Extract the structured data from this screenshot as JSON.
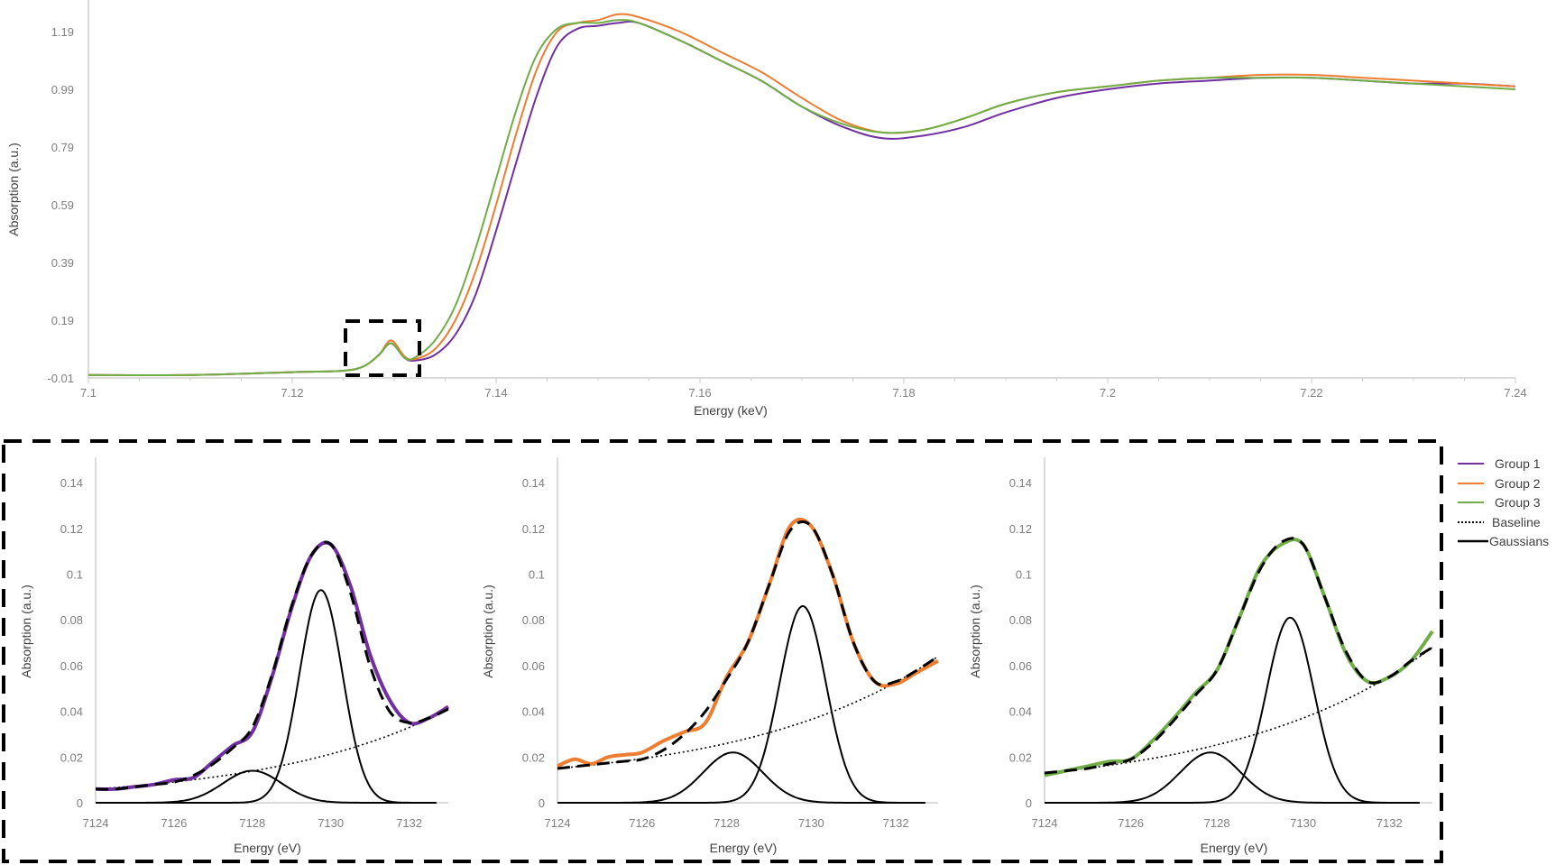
{
  "colors": {
    "group1": "#7030a0",
    "group2": "#ed7d31",
    "group3": "#70ad47",
    "baseline": "#000000",
    "gaussians": "#000000",
    "fit": "#000000",
    "axis": "#d0d0d0",
    "tick_text": "#7f7f7f"
  },
  "legend": {
    "items": [
      {
        "label": "Group 1",
        "style": "solid",
        "color": "#7030a0"
      },
      {
        "label": "Group 2",
        "style": "solid",
        "color": "#ed7d31"
      },
      {
        "label": "Group 3",
        "style": "solid",
        "color": "#70ad47"
      },
      {
        "label": "Baseline",
        "style": "dotted",
        "color": "#000000"
      },
      {
        "label": "Gaussians",
        "style": "solid",
        "color": "#000000"
      }
    ]
  },
  "chart_data": [
    {
      "id": "xanes-overview",
      "type": "line",
      "title": "",
      "xlabel": "Energy (keV)",
      "ylabel": "Absorption (a.u.)",
      "xlim": [
        7.1,
        7.24
      ],
      "ylim": [
        -0.01,
        1.29
      ],
      "x_ticks": [
        "7.1",
        "7.12",
        "7.14",
        "7.16",
        "7.18",
        "7.2",
        "7.22",
        "7.24"
      ],
      "y_ticks": [
        "-0.01",
        "0.19",
        "0.39",
        "0.59",
        "0.79",
        "0.99",
        "1.19"
      ],
      "grid": false,
      "legend_position": "right (shared, bottom panel)",
      "annotation": "dashed box around pre-edge peak, 7.125–7.132 keV",
      "x": [
        7.1,
        7.11,
        7.12,
        7.125,
        7.127,
        7.1285,
        7.1297,
        7.131,
        7.132,
        7.134,
        7.136,
        7.138,
        7.14,
        7.142,
        7.144,
        7.146,
        7.148,
        7.15,
        7.152,
        7.154,
        7.158,
        7.162,
        7.166,
        7.17,
        7.174,
        7.178,
        7.182,
        7.186,
        7.19,
        7.195,
        7.2,
        7.205,
        7.21,
        7.215,
        7.22,
        7.225,
        7.23,
        7.235,
        7.24
      ],
      "series": [
        {
          "name": "Group 1",
          "values": [
            0.0,
            0.0,
            0.01,
            0.015,
            0.03,
            0.07,
            0.11,
            0.06,
            0.05,
            0.07,
            0.14,
            0.28,
            0.5,
            0.74,
            0.97,
            1.14,
            1.2,
            1.21,
            1.22,
            1.22,
            1.16,
            1.09,
            1.02,
            0.93,
            0.86,
            0.82,
            0.83,
            0.86,
            0.91,
            0.96,
            0.99,
            1.01,
            1.02,
            1.03,
            1.03,
            1.02,
            1.01,
            1.01,
            1.0
          ]
        },
        {
          "name": "Group 2",
          "values": [
            0.0,
            0.0,
            0.01,
            0.015,
            0.03,
            0.07,
            0.12,
            0.065,
            0.055,
            0.09,
            0.19,
            0.36,
            0.59,
            0.84,
            1.06,
            1.19,
            1.22,
            1.23,
            1.25,
            1.24,
            1.19,
            1.12,
            1.05,
            0.96,
            0.88,
            0.84,
            0.85,
            0.89,
            0.94,
            0.98,
            1.0,
            1.02,
            1.03,
            1.04,
            1.04,
            1.03,
            1.02,
            1.01,
            1.0
          ]
        },
        {
          "name": "Group 3",
          "values": [
            0.0,
            0.0,
            0.01,
            0.015,
            0.03,
            0.07,
            0.11,
            0.06,
            0.06,
            0.12,
            0.24,
            0.44,
            0.68,
            0.92,
            1.11,
            1.2,
            1.22,
            1.22,
            1.23,
            1.22,
            1.16,
            1.09,
            1.02,
            0.93,
            0.87,
            0.84,
            0.85,
            0.89,
            0.94,
            0.98,
            1.0,
            1.02,
            1.03,
            1.03,
            1.03,
            1.02,
            1.01,
            1.0,
            0.99
          ]
        }
      ]
    },
    {
      "id": "pre-edge-group1",
      "type": "line",
      "xlabel": "Energy (eV)",
      "ylabel": "Absorption (a.u.)",
      "xlim": [
        7124,
        7133
      ],
      "ylim": [
        0,
        0.15
      ],
      "x_ticks": [
        "7124",
        "7126",
        "7128",
        "7130",
        "7132"
      ],
      "y_ticks": [
        "0",
        "0.02",
        "0.04",
        "0.06",
        "0.08",
        "0.1",
        "0.12",
        "0.14"
      ],
      "grid": false,
      "data": {
        "x": [
          7124,
          7124.5,
          7125,
          7125.5,
          7126,
          7126.5,
          7127,
          7127.5,
          7128,
          7128.5,
          7129,
          7129.5,
          7130,
          7130.5,
          7131,
          7131.5,
          7132,
          7132.5,
          7133
        ],
        "values": [
          0.006,
          0.006,
          0.007,
          0.008,
          0.01,
          0.011,
          0.018,
          0.025,
          0.031,
          0.055,
          0.085,
          0.108,
          0.113,
          0.095,
          0.065,
          0.045,
          0.035,
          0.037,
          0.042
        ]
      },
      "fit": {
        "x": [
          7124,
          7124.5,
          7125,
          7125.5,
          7126,
          7126.5,
          7127,
          7127.5,
          7128,
          7128.5,
          7129,
          7129.5,
          7130,
          7130.5,
          7131,
          7131.5,
          7132,
          7132.5,
          7133
        ],
        "values": [
          0.006,
          0.006,
          0.007,
          0.008,
          0.009,
          0.012,
          0.017,
          0.024,
          0.033,
          0.056,
          0.086,
          0.108,
          0.113,
          0.092,
          0.06,
          0.04,
          0.035,
          0.037,
          0.041
        ]
      },
      "baseline": {
        "start": [
          7124,
          0.006
        ],
        "end": [
          7133,
          0.041
        ],
        "curvature": "exponential"
      },
      "gaussians": [
        {
          "center": 7128.0,
          "height": 0.014,
          "sigma": 0.75
        },
        {
          "center": 7129.75,
          "height": 0.093,
          "sigma": 0.55
        }
      ]
    },
    {
      "id": "pre-edge-group2",
      "type": "line",
      "xlabel": "Energy (eV)",
      "ylabel": "Absorption (a.u.)",
      "xlim": [
        7124,
        7133
      ],
      "ylim": [
        0,
        0.15
      ],
      "x_ticks": [
        "7124",
        "7126",
        "7128",
        "7130",
        "7132"
      ],
      "y_ticks": [
        "0",
        "0.02",
        "0.04",
        "0.06",
        "0.08",
        "0.1",
        "0.12",
        "0.14"
      ],
      "grid": false,
      "data": {
        "x": [
          7124,
          7124.4,
          7124.8,
          7125.2,
          7125.6,
          7126,
          7126.5,
          7127,
          7127.5,
          7128,
          7128.5,
          7129,
          7129.5,
          7130,
          7130.5,
          7131,
          7131.5,
          7132,
          7132.5,
          7133
        ],
        "values": [
          0.016,
          0.019,
          0.017,
          0.02,
          0.021,
          0.022,
          0.027,
          0.031,
          0.035,
          0.055,
          0.07,
          0.095,
          0.121,
          0.121,
          0.1,
          0.07,
          0.053,
          0.052,
          0.057,
          0.062
        ]
      },
      "fit": {
        "x": [
          7124,
          7124.5,
          7125,
          7125.5,
          7126,
          7126.5,
          7127,
          7127.5,
          7128,
          7128.5,
          7129,
          7129.5,
          7130,
          7130.5,
          7131,
          7131.5,
          7132,
          7132.5,
          7133
        ],
        "values": [
          0.015,
          0.016,
          0.017,
          0.018,
          0.019,
          0.023,
          0.03,
          0.04,
          0.054,
          0.07,
          0.095,
          0.119,
          0.121,
          0.1,
          0.07,
          0.053,
          0.053,
          0.058,
          0.064
        ]
      },
      "baseline": {
        "start": [
          7124,
          0.015
        ],
        "end": [
          7133,
          0.064
        ],
        "curvature": "exponential"
      },
      "gaussians": [
        {
          "center": 7128.15,
          "height": 0.022,
          "sigma": 0.7
        },
        {
          "center": 7129.8,
          "height": 0.086,
          "sigma": 0.55
        }
      ]
    },
    {
      "id": "pre-edge-group3",
      "type": "line",
      "xlabel": "Energy (eV)",
      "ylabel": "Absorption (a.u.)",
      "xlim": [
        7124,
        7133
      ],
      "ylim": [
        0,
        0.15
      ],
      "x_ticks": [
        "7124",
        "7126",
        "7128",
        "7130",
        "7132"
      ],
      "y_ticks": [
        "0",
        "0.02",
        "0.04",
        "0.06",
        "0.08",
        "0.1",
        "0.12",
        "0.14"
      ],
      "grid": false,
      "data": {
        "x": [
          7124,
          7124.5,
          7125,
          7125.5,
          7126,
          7126.5,
          7127,
          7127.5,
          7128,
          7128.5,
          7129,
          7129.5,
          7130,
          7130.5,
          7131,
          7131.5,
          7132,
          7132.5,
          7133
        ],
        "values": [
          0.012,
          0.014,
          0.016,
          0.018,
          0.019,
          0.027,
          0.037,
          0.048,
          0.058,
          0.08,
          0.103,
          0.113,
          0.113,
          0.09,
          0.065,
          0.053,
          0.055,
          0.062,
          0.075
        ]
      },
      "fit": {
        "x": [
          7124,
          7124.5,
          7125,
          7125.5,
          7126,
          7126.5,
          7127,
          7127.5,
          7128,
          7128.5,
          7129,
          7129.5,
          7130,
          7130.5,
          7131,
          7131.5,
          7132,
          7132.5,
          7133
        ],
        "values": [
          0.013,
          0.014,
          0.015,
          0.017,
          0.019,
          0.026,
          0.036,
          0.047,
          0.058,
          0.08,
          0.102,
          0.114,
          0.113,
          0.09,
          0.066,
          0.053,
          0.055,
          0.062,
          0.068
        ]
      },
      "baseline": {
        "start": [
          7124,
          0.013
        ],
        "end": [
          7133,
          0.068
        ],
        "curvature": "exponential"
      },
      "gaussians": [
        {
          "center": 7127.85,
          "height": 0.022,
          "sigma": 0.7
        },
        {
          "center": 7129.7,
          "height": 0.081,
          "sigma": 0.55
        }
      ]
    }
  ]
}
